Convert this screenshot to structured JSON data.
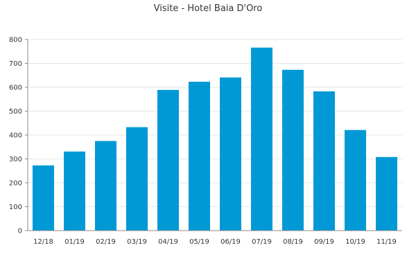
{
  "chart_data": {
    "type": "bar",
    "title": "Visite - Hotel Baia D'Oro",
    "xlabel": "",
    "ylabel": "",
    "categories": [
      "12/18",
      "01/19",
      "02/19",
      "03/19",
      "04/19",
      "05/19",
      "06/19",
      "07/19",
      "08/19",
      "09/19",
      "10/19",
      "11/19"
    ],
    "values": [
      273,
      331,
      375,
      433,
      589,
      623,
      641,
      766,
      673,
      583,
      421,
      308
    ],
    "ylim": [
      0,
      800
    ],
    "yticks": [
      0,
      100,
      200,
      300,
      400,
      500,
      600,
      700,
      800
    ],
    "grid": true,
    "legend": "none",
    "colors": {
      "bar": "#0099d6",
      "grid": "#e6e6e6",
      "axis": "#888888",
      "text": "#333333"
    }
  }
}
